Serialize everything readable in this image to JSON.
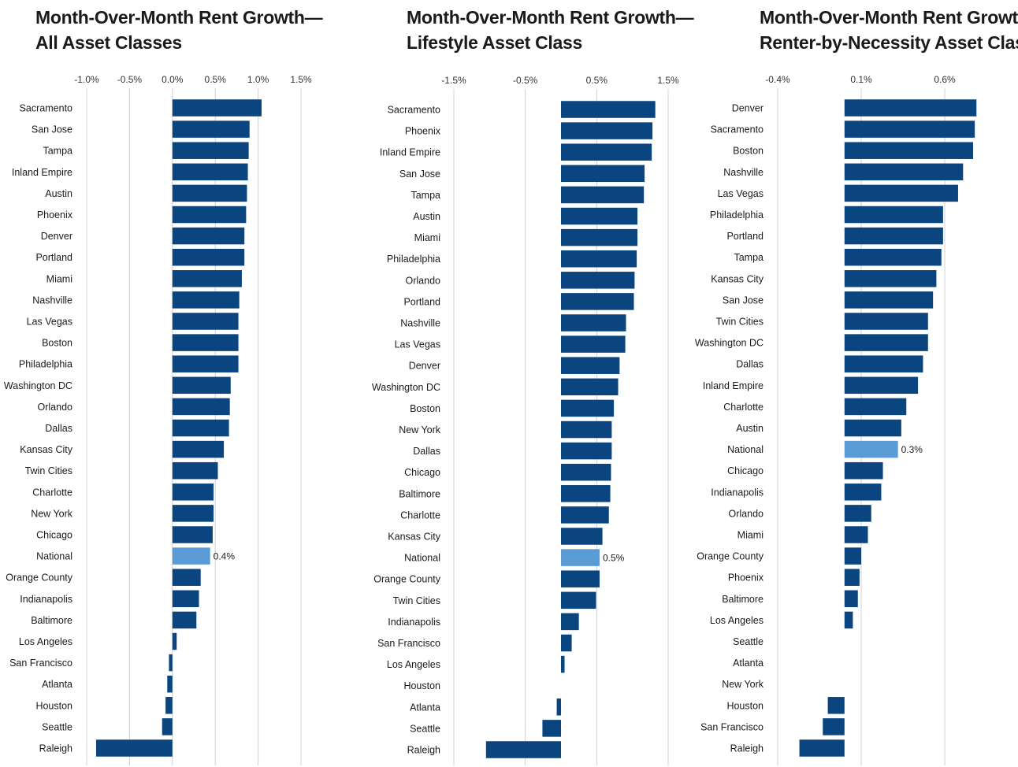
{
  "chart_data": [
    {
      "type": "bar",
      "orientation": "horizontal",
      "title_line1": "Month-Over-Month Rent Growth—",
      "title_line2": "All Asset Classes",
      "xlim": [
        -1.0,
        1.5
      ],
      "grid": true,
      "bar_color": "#0b4580",
      "highlight_color": "#5b9bd5",
      "highlight_category": "National",
      "ticks": [
        {
          "value": -1.0,
          "label": "-1.0%"
        },
        {
          "value": -0.5,
          "label": "-0.5%"
        },
        {
          "value": 0.0,
          "label": "0.0%"
        },
        {
          "value": 0.5,
          "label": "0.5%"
        },
        {
          "value": 1.0,
          "label": "1.0%"
        },
        {
          "value": 1.5,
          "label": "1.5%"
        }
      ],
      "categories": [
        "Sacramento",
        "San Jose",
        "Tampa",
        "Inland Empire",
        "Austin",
        "Phoenix",
        "Denver",
        "Portland",
        "Miami",
        "Nashville",
        "Las Vegas",
        "Boston",
        "Philadelphia",
        "Washington DC",
        "Orlando",
        "Dallas",
        "Kansas City",
        "Twin Cities",
        "Charlotte",
        "New York",
        "Chicago",
        "National",
        "Orange County",
        "Indianapolis",
        "Baltimore",
        "Los Angeles",
        "San Francisco",
        "Atlanta",
        "Houston",
        "Seattle",
        "Raleigh"
      ],
      "values": [
        1.04,
        0.9,
        0.89,
        0.88,
        0.87,
        0.86,
        0.84,
        0.84,
        0.81,
        0.78,
        0.77,
        0.77,
        0.77,
        0.68,
        0.67,
        0.66,
        0.6,
        0.53,
        0.48,
        0.48,
        0.47,
        0.44,
        0.33,
        0.31,
        0.28,
        0.05,
        -0.04,
        -0.06,
        -0.08,
        -0.12,
        -0.89
      ],
      "data_labels": {
        "National": "0.4%"
      }
    },
    {
      "type": "bar",
      "orientation": "horizontal",
      "title_line1": "Month-Over-Month Rent Growth—",
      "title_line2": "Lifestyle Asset Class",
      "xlim": [
        -1.5,
        1.5
      ],
      "grid": true,
      "bar_color": "#0b4580",
      "highlight_color": "#5b9bd5",
      "highlight_category": "National",
      "ticks": [
        {
          "value": -1.5,
          "label": "-1.5%"
        },
        {
          "value": -0.5,
          "label": "-0.5%"
        },
        {
          "value": 0.5,
          "label": "0.5%"
        },
        {
          "value": 1.5,
          "label": "1.5%"
        }
      ],
      "categories": [
        "Sacramento",
        "Phoenix",
        "Inland Empire",
        "San Jose",
        "Tampa",
        "Austin",
        "Miami",
        "Philadelphia",
        "Orlando",
        "Portland",
        "Nashville",
        "Las Vegas",
        "Denver",
        "Washington DC",
        "Boston",
        "New York",
        "Dallas",
        "Chicago",
        "Baltimore",
        "Charlotte",
        "Kansas City",
        "National",
        "Orange County",
        "Twin Cities",
        "Indianapolis",
        "San Francisco",
        "Los Angeles",
        "Houston",
        "Atlanta",
        "Seattle",
        "Raleigh"
      ],
      "values": [
        1.32,
        1.28,
        1.27,
        1.17,
        1.16,
        1.07,
        1.07,
        1.06,
        1.03,
        1.02,
        0.91,
        0.9,
        0.82,
        0.8,
        0.74,
        0.71,
        0.71,
        0.7,
        0.69,
        0.67,
        0.58,
        0.54,
        0.54,
        0.49,
        0.25,
        0.15,
        0.05,
        0.0,
        -0.06,
        -0.26,
        -1.05
      ],
      "data_labels": {
        "National": "0.5%"
      }
    },
    {
      "type": "bar",
      "orientation": "horizontal",
      "title_line1": "Month-Over-Month Rent Growth—",
      "title_line2": "Renter-by-Necessity Asset Class",
      "xlim": [
        -0.4,
        0.85
      ],
      "grid": true,
      "bar_color": "#0b4580",
      "highlight_color": "#5b9bd5",
      "highlight_category": "National",
      "ticks": [
        {
          "value": -0.4,
          "label": "-0.4%"
        },
        {
          "value": 0.1,
          "label": "0.1%"
        },
        {
          "value": 0.6,
          "label": "0.6%"
        }
      ],
      "categories": [
        "Denver",
        "Sacramento",
        "Boston",
        "Nashville",
        "Las Vegas",
        "Philadelphia",
        "Portland",
        "Tampa",
        "Kansas City",
        "San Jose",
        "Twin Cities",
        "Washington DC",
        "Dallas",
        "Inland Empire",
        "Charlotte",
        "Austin",
        "National",
        "Chicago",
        "Indianapolis",
        "Orlando",
        "Miami",
        "Orange County",
        "Phoenix",
        "Baltimore",
        "Los Angeles",
        "Seattle",
        "Atlanta",
        "New York",
        "Houston",
        "San Francisco",
        "Raleigh"
      ],
      "values": [
        0.79,
        0.78,
        0.77,
        0.71,
        0.68,
        0.59,
        0.59,
        0.58,
        0.55,
        0.53,
        0.5,
        0.5,
        0.47,
        0.44,
        0.37,
        0.34,
        0.32,
        0.23,
        0.22,
        0.16,
        0.14,
        0.1,
        0.09,
        0.08,
        0.05,
        0.0,
        0.0,
        0.0,
        -0.1,
        -0.13,
        -0.27
      ],
      "data_labels": {
        "National": "0.3%"
      }
    }
  ]
}
